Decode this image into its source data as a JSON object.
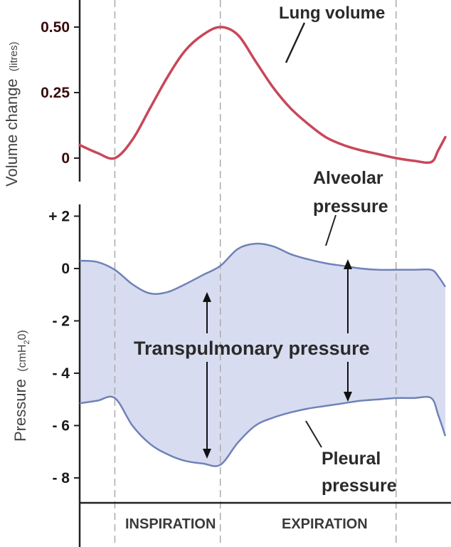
{
  "chart_data": [
    {
      "type": "line",
      "ylabel": "Volume change",
      "ylabel_unit": "(litres)",
      "ylim": [
        0,
        0.5
      ],
      "y_ticks": [
        "0.50",
        "0.25",
        "0"
      ],
      "y_tick_values": [
        0.5,
        0.25,
        0
      ],
      "series": [
        {
          "name": "Lung volume",
          "color": "#c8475a",
          "x": [
            0,
            0.25,
            0.5,
            0.75,
            1.0,
            1.25,
            1.5,
            1.75,
            2.0,
            2.25,
            2.5,
            2.75,
            3.0,
            3.25,
            3.5,
            3.75,
            4.0,
            4.25,
            4.5,
            4.75,
            5.0,
            5.1,
            5.2
          ],
          "values": [
            0.05,
            0.02,
            0.0,
            0.07,
            0.19,
            0.31,
            0.41,
            0.47,
            0.5,
            0.47,
            0.37,
            0.27,
            0.19,
            0.13,
            0.08,
            0.05,
            0.03,
            0.015,
            0.0,
            -0.01,
            -0.015,
            0.03,
            0.08
          ]
        }
      ],
      "annotations": [
        "Lung volume"
      ]
    },
    {
      "type": "area",
      "ylabel": "Pressure",
      "ylabel_unit": "(cmH",
      "ylabel_unit_sub": "2",
      "ylabel_unit_close": "0)",
      "ylim": [
        -8,
        2
      ],
      "y_ticks": [
        "+ 2",
        "0",
        "- 2",
        "- 4",
        "- 6",
        "- 8"
      ],
      "y_tick_values": [
        2,
        0,
        -2,
        -4,
        -6,
        -8
      ],
      "series": [
        {
          "name": "Alveolar pressure",
          "color": "#6f82b8",
          "x": [
            0,
            0.25,
            0.5,
            0.75,
            1.0,
            1.25,
            1.5,
            1.75,
            2.0,
            2.25,
            2.5,
            2.75,
            3.0,
            3.25,
            3.5,
            3.75,
            4.0,
            4.25,
            4.5,
            4.75,
            5.0,
            5.1,
            5.2
          ],
          "values": [
            0.3,
            0.25,
            -0.05,
            -0.6,
            -0.95,
            -0.9,
            -0.6,
            -0.25,
            0.1,
            0.75,
            0.95,
            0.85,
            0.55,
            0.35,
            0.2,
            0.1,
            0.0,
            -0.05,
            -0.05,
            -0.05,
            -0.05,
            -0.3,
            -0.7
          ]
        },
        {
          "name": "Pleural pressure",
          "color": "#6f82b8",
          "x": [
            0,
            0.25,
            0.5,
            0.75,
            1.0,
            1.25,
            1.5,
            1.75,
            2.0,
            2.25,
            2.5,
            2.75,
            3.0,
            3.25,
            3.5,
            3.75,
            4.0,
            4.25,
            4.5,
            4.75,
            5.0,
            5.1,
            5.2
          ],
          "values": [
            -5.15,
            -5.05,
            -4.95,
            -6.0,
            -6.7,
            -7.1,
            -7.35,
            -7.45,
            -7.5,
            -6.65,
            -6.0,
            -5.7,
            -5.5,
            -5.35,
            -5.25,
            -5.15,
            -5.05,
            -5.0,
            -4.95,
            -4.95,
            -4.95,
            -5.6,
            -6.4
          ]
        }
      ],
      "fill_color": "#d8dcf0",
      "annotations": [
        "Alveolar pressure",
        "Transpulmonary pressure",
        "Pleural pressure"
      ]
    }
  ],
  "labels": {
    "lung_volume": "Lung volume",
    "alveolar_line1": "Alveolar",
    "alveolar_line2": "pressure",
    "transpulmonary": "Transpulmonary pressure",
    "pleural_line1": "Pleural",
    "pleural_line2": "pressure"
  },
  "phases": {
    "inspiration": "INSPIRATION",
    "expiration": "EXPIRATION",
    "boundaries_s": [
      0.5,
      2.0,
      4.5
    ]
  },
  "colors": {
    "volume_line": "#c8475a",
    "pressure_line": "#6f82b8",
    "pressure_fill": "#d8dcf0",
    "gridline": "#aaaaaa",
    "arrow": "#111111"
  }
}
